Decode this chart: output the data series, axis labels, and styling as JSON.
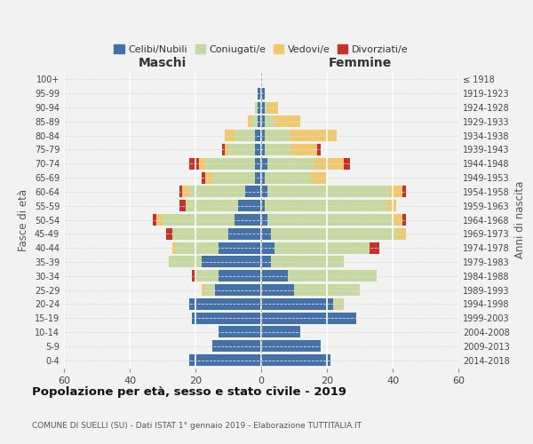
{
  "age_groups": [
    "0-4",
    "5-9",
    "10-14",
    "15-19",
    "20-24",
    "25-29",
    "30-34",
    "35-39",
    "40-44",
    "45-49",
    "50-54",
    "55-59",
    "60-64",
    "65-69",
    "70-74",
    "75-79",
    "80-84",
    "85-89",
    "90-94",
    "95-99",
    "100+"
  ],
  "birth_years": [
    "2014-2018",
    "2009-2013",
    "2004-2008",
    "1999-2003",
    "1994-1998",
    "1989-1993",
    "1984-1988",
    "1979-1983",
    "1974-1978",
    "1969-1973",
    "1964-1968",
    "1959-1963",
    "1954-1958",
    "1949-1953",
    "1944-1948",
    "1939-1943",
    "1934-1938",
    "1929-1933",
    "1924-1928",
    "1919-1923",
    "≤ 1918"
  ],
  "maschi": {
    "celibi": [
      22,
      15,
      13,
      21,
      22,
      14,
      13,
      18,
      13,
      10,
      8,
      7,
      5,
      2,
      2,
      2,
      2,
      1,
      1,
      1,
      0
    ],
    "coniugati": [
      0,
      0,
      0,
      0,
      0,
      3,
      7,
      10,
      13,
      17,
      22,
      16,
      17,
      13,
      15,
      8,
      6,
      2,
      1,
      0,
      0
    ],
    "vedovi": [
      0,
      0,
      0,
      0,
      0,
      1,
      0,
      0,
      1,
      0,
      2,
      0,
      2,
      2,
      2,
      1,
      3,
      1,
      0,
      0,
      0
    ],
    "divorziati": [
      0,
      0,
      0,
      0,
      0,
      0,
      1,
      0,
      0,
      2,
      1,
      2,
      1,
      1,
      3,
      1,
      0,
      0,
      0,
      0,
      0
    ]
  },
  "femmine": {
    "nubili": [
      21,
      18,
      12,
      29,
      22,
      10,
      8,
      3,
      4,
      3,
      2,
      1,
      2,
      1,
      2,
      1,
      1,
      1,
      1,
      1,
      0
    ],
    "coniugate": [
      0,
      0,
      0,
      0,
      3,
      20,
      27,
      22,
      29,
      38,
      38,
      37,
      37,
      14,
      14,
      8,
      8,
      3,
      1,
      0,
      0
    ],
    "vedove": [
      0,
      0,
      0,
      0,
      0,
      0,
      0,
      0,
      0,
      3,
      3,
      3,
      4,
      5,
      9,
      8,
      14,
      8,
      3,
      0,
      0
    ],
    "divorziate": [
      0,
      0,
      0,
      0,
      0,
      0,
      0,
      0,
      3,
      0,
      1,
      0,
      1,
      0,
      2,
      1,
      0,
      0,
      0,
      0,
      0
    ]
  },
  "colors": {
    "celibi": "#4472a8",
    "coniugati": "#c5d9a0",
    "vedovi": "#f0c96e",
    "divorziati": "#c8302a"
  },
  "xlim": 60,
  "title": "Popolazione per età, sesso e stato civile - 2019",
  "subtitle": "COMUNE DI SUELLI (SU) - Dati ISTAT 1° gennaio 2019 - Elaborazione TUTTITALIA.IT",
  "ylabel_left": "Fasce di età",
  "ylabel_right": "Anni di nascita",
  "xlabel_maschi": "Maschi",
  "xlabel_femmine": "Femmine",
  "legend_labels": [
    "Celibi/Nubili",
    "Coniugati/e",
    "Vedovi/e",
    "Divorziati/e"
  ],
  "background_color": "#f2f2f2"
}
